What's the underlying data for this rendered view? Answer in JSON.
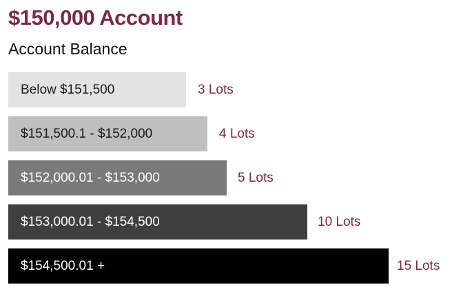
{
  "header": {
    "title": "$150,000 Account",
    "subtitle": "Account Balance"
  },
  "colors": {
    "accent": "#7a2b43"
  },
  "tiers": [
    {
      "range": "Below $151,500",
      "lots": "3 Lots",
      "bar_color": "#e3e3e3",
      "text_color": "#1a1a1a"
    },
    {
      "range": "$151,500.1 - $152,000",
      "lots": "4 Lots",
      "bar_color": "#bfbfbf",
      "text_color": "#1a1a1a"
    },
    {
      "range": "$152,000.01 - $153,000",
      "lots": "5 Lots",
      "bar_color": "#7a7a7a",
      "text_color": "#ffffff"
    },
    {
      "range": "$153,000.01 - $154,500",
      "lots": "10 Lots",
      "bar_color": "#3f3f3f",
      "text_color": "#ffffff"
    },
    {
      "range": "$154,500.01 +",
      "lots": "15 Lots",
      "bar_color": "#000000",
      "text_color": "#ffffff"
    }
  ]
}
